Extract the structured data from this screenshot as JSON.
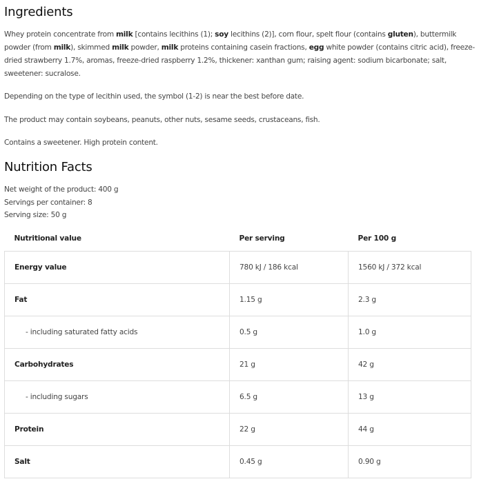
{
  "ingredients": {
    "title": "Ingredients",
    "segments": [
      "Whey protein concentrate from ",
      "milk",
      " [contains lecithins (1); ",
      "soy",
      " lecithins (2)], corn flour, spelt flour (contains ",
      "gluten",
      "), buttermilk powder (from ",
      "milk",
      "), skimmed ",
      "milk",
      " powder, ",
      "milk",
      " proteins containing casein fractions, ",
      "egg",
      " white powder (contains citric acid), freeze-dried strawberry 1.7%, aromas, freeze-dried raspberry 1.2%, thickener: xanthan gum; raising agent: sodium bicarbonate; salt, sweetener: sucralose."
    ],
    "note1": "Depending on the type of lecithin used, the symbol (1-2) is near the best before date.",
    "note2": "The product may contain soybeans, peanuts, other nuts, sesame seeds, crustaceans, fish.",
    "note3": "Contains a sweetener. High protein content."
  },
  "nutrition": {
    "title": "Nutrition Facts",
    "net_weight": "Net weight of the product: 400 g",
    "servings": "Servings per container: 8",
    "serving_size": "Serving size: 50 g",
    "headers": [
      "Nutritional value",
      "Per serving",
      "Per 100 g"
    ],
    "rows": [
      [
        "Energy value",
        "780 kJ / 186 kcal",
        "1560 kJ / 372 kcal"
      ],
      [
        "Fat",
        "1.15 g",
        "2.3 g"
      ],
      [
        "- including saturated fatty acids",
        "0.5 g",
        "1.0 g"
      ],
      [
        "Carbohydrates",
        "21 g",
        "42 g"
      ],
      [
        "- including sugars",
        "6.5 g",
        "13 g"
      ],
      [
        "Protein",
        "22 g",
        "44 g"
      ],
      [
        "Salt",
        "0.45 g",
        "0.90 g"
      ]
    ]
  }
}
